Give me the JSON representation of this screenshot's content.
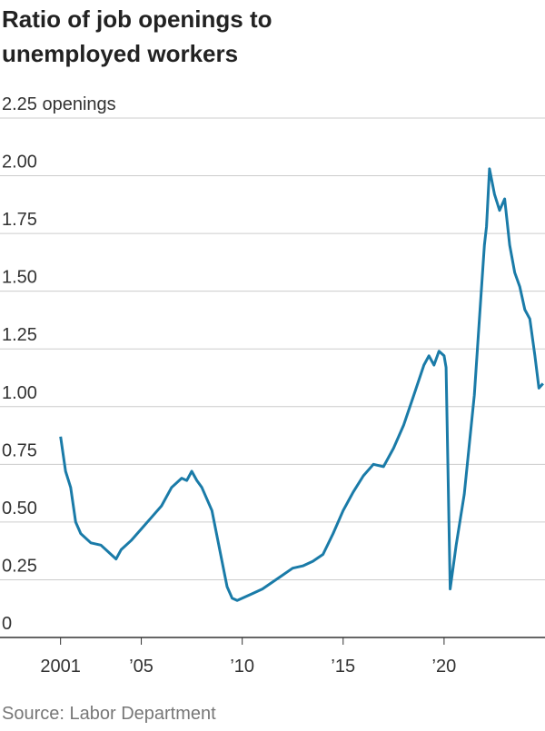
{
  "chart_data": {
    "type": "line",
    "title": "Ratio of job openings to unemployed workers",
    "source": "Source: Labor Department",
    "xlim": [
      1998,
      2025
    ],
    "ylim": [
      0,
      2.25
    ],
    "xticks": [
      2001,
      {
        "value": 2005,
        "label": "’05"
      },
      {
        "value": 2010,
        "label": "’10"
      },
      {
        "value": 2015,
        "label": "’15"
      },
      {
        "value": 2020,
        "label": "’20"
      }
    ],
    "yticks": [
      0,
      {
        "value": 0.25,
        "label": "0.25"
      },
      {
        "value": 0.5,
        "label": "0.50"
      },
      {
        "value": 0.75,
        "label": "0.75"
      },
      {
        "value": 1,
        "label": "1.00"
      },
      {
        "value": 1.25,
        "label": "1.25"
      },
      {
        "value": 1.5,
        "label": "1.50"
      },
      {
        "value": 1.75,
        "label": "1.75"
      },
      {
        "value": 2,
        "label": "2.00"
      },
      {
        "value": 2.25,
        "label": "2.25 openings"
      }
    ],
    "grid": true,
    "x": [
      2001.0,
      2001.25,
      2001.5,
      2001.75,
      2002.0,
      2002.5,
      2003.0,
      2003.5,
      2003.75,
      2004.0,
      2004.5,
      2005.0,
      2005.5,
      2006.0,
      2006.5,
      2007.0,
      2007.25,
      2007.5,
      2007.75,
      2008.0,
      2008.5,
      2009.0,
      2009.25,
      2009.5,
      2009.75,
      2010.0,
      2010.5,
      2011.0,
      2011.5,
      2012.0,
      2012.5,
      2013.0,
      2013.5,
      2014.0,
      2014.5,
      2015.0,
      2015.5,
      2016.0,
      2016.5,
      2017.0,
      2017.5,
      2018.0,
      2018.5,
      2019.0,
      2019.25,
      2019.5,
      2019.75,
      2020.0,
      2020.1,
      2020.3,
      2020.6,
      2021.0,
      2021.5,
      2021.75,
      2022.0,
      2022.1,
      2022.25,
      2022.5,
      2022.75,
      2023.0,
      2023.25,
      2023.5,
      2023.75,
      2024.0,
      2024.25,
      2024.5,
      2024.7,
      2024.9
    ],
    "series": [
      {
        "name": "Ratio",
        "color": "#1a7ba8",
        "values": [
          0.87,
          0.72,
          0.65,
          0.5,
          0.45,
          0.41,
          0.4,
          0.36,
          0.34,
          0.38,
          0.42,
          0.47,
          0.52,
          0.57,
          0.65,
          0.69,
          0.68,
          0.72,
          0.68,
          0.65,
          0.55,
          0.33,
          0.22,
          0.17,
          0.16,
          0.17,
          0.19,
          0.21,
          0.24,
          0.27,
          0.3,
          0.31,
          0.33,
          0.36,
          0.45,
          0.55,
          0.63,
          0.7,
          0.75,
          0.74,
          0.82,
          0.92,
          1.05,
          1.18,
          1.22,
          1.18,
          1.24,
          1.22,
          1.17,
          0.21,
          0.4,
          0.62,
          1.05,
          1.38,
          1.7,
          1.78,
          2.03,
          1.92,
          1.85,
          1.9,
          1.7,
          1.58,
          1.52,
          1.42,
          1.38,
          1.22,
          1.08,
          1.1
        ]
      }
    ]
  }
}
